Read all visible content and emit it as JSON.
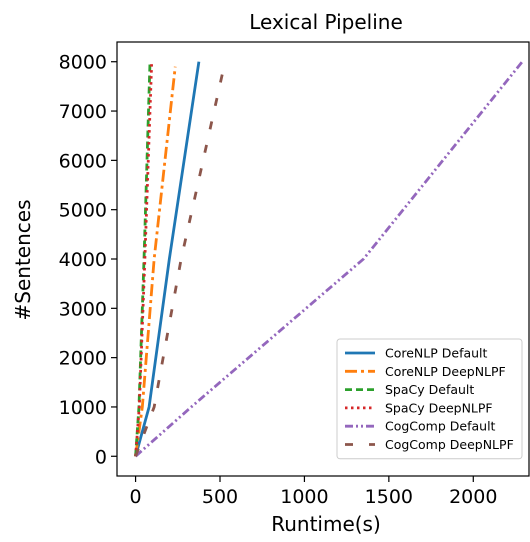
{
  "chart_data": {
    "type": "line",
    "title": "Lexical Pipeline",
    "xlabel": "Runtime(s)",
    "ylabel": "#Sentences",
    "xlim": [
      -110,
      2330
    ],
    "ylim": [
      -400,
      8400
    ],
    "xticks": [
      0,
      500,
      1000,
      1500,
      2000
    ],
    "yticks": [
      0,
      1000,
      2000,
      3000,
      4000,
      5000,
      6000,
      7000,
      8000
    ],
    "grid": false,
    "legend_position": "lower-right",
    "series": [
      {
        "name": "CoreNLP Default",
        "color": "#1f77b4",
        "style": "solid",
        "points": [
          [
            0,
            0
          ],
          [
            80,
            1000
          ],
          [
            200,
            4000
          ],
          [
            375,
            8000
          ]
        ]
      },
      {
        "name": "CoreNLP DeepNLPF",
        "color": "#ff7f0e",
        "style": "dashdot",
        "points": [
          [
            0,
            0
          ],
          [
            40,
            1000
          ],
          [
            110,
            4000
          ],
          [
            235,
            7900
          ]
        ]
      },
      {
        "name": "SpaCy Default",
        "color": "#2ca02c",
        "style": "dashed",
        "points": [
          [
            0,
            0
          ],
          [
            20,
            1000
          ],
          [
            50,
            4000
          ],
          [
            85,
            7950
          ]
        ]
      },
      {
        "name": "SpaCy DeepNLPF",
        "color": "#d62728",
        "style": "dotted",
        "points": [
          [
            0,
            0
          ],
          [
            22,
            1000
          ],
          [
            55,
            4000
          ],
          [
            95,
            7950
          ]
        ]
      },
      {
        "name": "CogComp Default",
        "color": "#9467bd",
        "style": "dashdotdot",
        "points": [
          [
            0,
            0
          ],
          [
            330,
            1000
          ],
          [
            1350,
            4000
          ],
          [
            2290,
            8000
          ]
        ]
      },
      {
        "name": "CogComp DeepNLPF",
        "color": "#8c564b",
        "style": "loosedash",
        "points": [
          [
            0,
            0
          ],
          [
            110,
            1000
          ],
          [
            270,
            4000
          ],
          [
            530,
            8000
          ]
        ]
      }
    ]
  }
}
